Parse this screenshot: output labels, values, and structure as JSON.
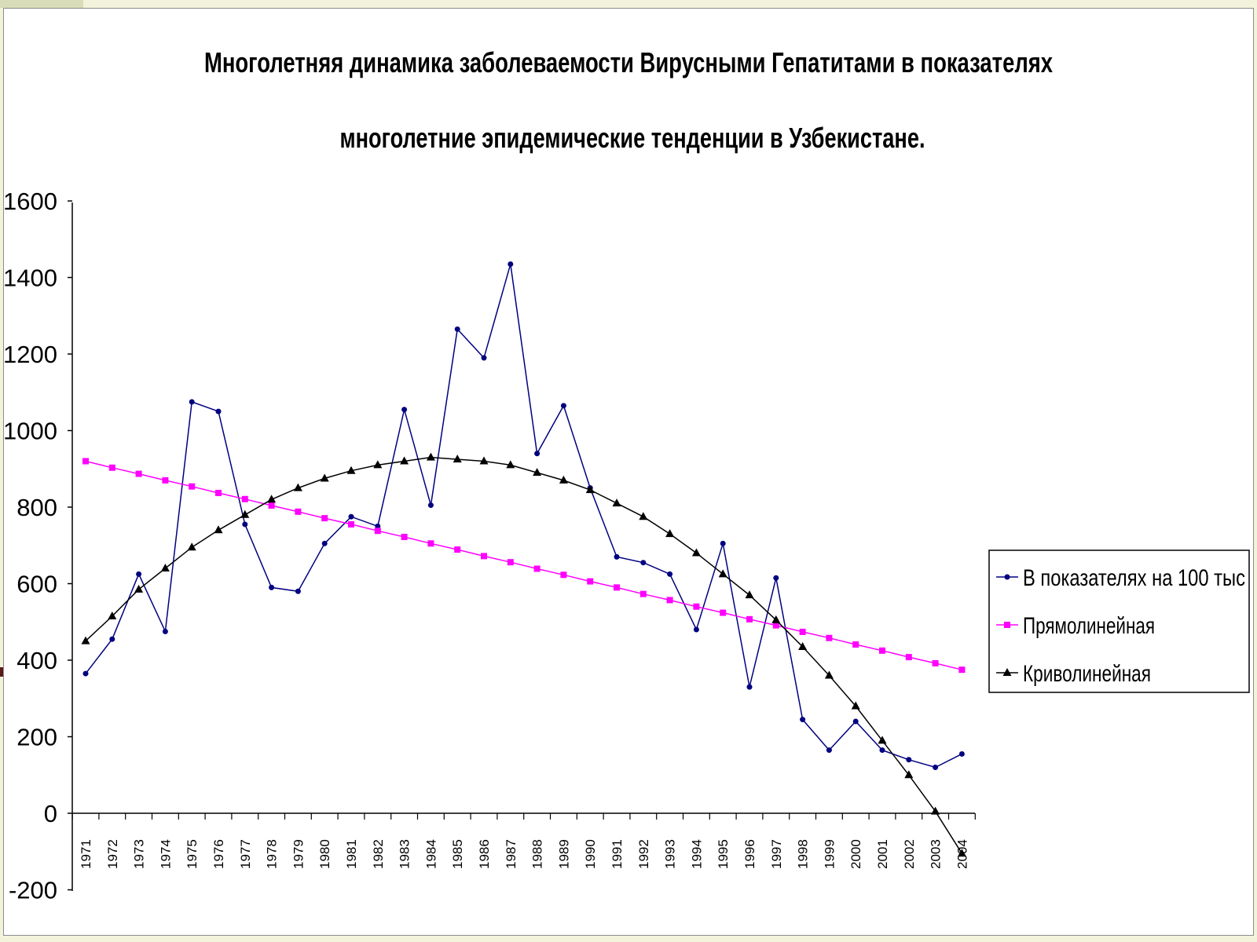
{
  "chart_data": {
    "type": "line",
    "title_lines": [
      "Многолетняя динамика заболеваемости Вирусными Гепатитами в показателях",
      "многолетние эпидемические тенденции в Узбекистане."
    ],
    "xlabel": "",
    "ylabel": "",
    "ylim": [
      -200,
      1600
    ],
    "yticks": [
      -200,
      0,
      200,
      400,
      600,
      800,
      1000,
      1200,
      1400,
      1600
    ],
    "ytick_labels": [
      "-200",
      "0",
      "200",
      "400",
      "600",
      "800",
      "1000",
      "1200",
      "1400",
      "1600"
    ],
    "grid": false,
    "legend_position": "right",
    "x": [
      "1971",
      "1972",
      "1973",
      "1974",
      "1975",
      "1976",
      "1977",
      "1978",
      "1979",
      "1980",
      "1981",
      "1982",
      "1983",
      "1984",
      "1985",
      "1986",
      "1987",
      "1988",
      "1989",
      "1990",
      "1991",
      "1992",
      "1993",
      "1994",
      "1995",
      "1996",
      "1997",
      "1998",
      "1999",
      "2000",
      "2001",
      "2002",
      "2003",
      "2004"
    ],
    "series": [
      {
        "name": "В показателях на 100 тыс",
        "color": "#000080",
        "marker": "circle",
        "values": [
          365,
          455,
          625,
          475,
          1075,
          1050,
          755,
          590,
          580,
          705,
          775,
          750,
          1055,
          805,
          1265,
          1190,
          1435,
          940,
          1065,
          850,
          670,
          655,
          625,
          480,
          705,
          330,
          615,
          245,
          165,
          240,
          165,
          140,
          120,
          155
        ]
      },
      {
        "name": "Прямолинейная",
        "color": "#ff00ff",
        "marker": "square",
        "values": [
          920,
          903,
          887,
          870,
          854,
          837,
          821,
          804,
          788,
          771,
          755,
          738,
          722,
          705,
          689,
          672,
          656,
          639,
          623,
          606,
          590,
          573,
          557,
          540,
          524,
          507,
          491,
          474,
          458,
          441,
          425,
          408,
          392,
          375
        ]
      },
      {
        "name": "Криволинейная",
        "color": "#000000",
        "marker": "triangle",
        "values": [
          450,
          515,
          585,
          640,
          695,
          740,
          780,
          820,
          850,
          875,
          895,
          910,
          920,
          930,
          925,
          920,
          910,
          890,
          870,
          845,
          810,
          775,
          730,
          680,
          625,
          570,
          505,
          435,
          360,
          280,
          190,
          100,
          5,
          -105
        ]
      }
    ]
  }
}
